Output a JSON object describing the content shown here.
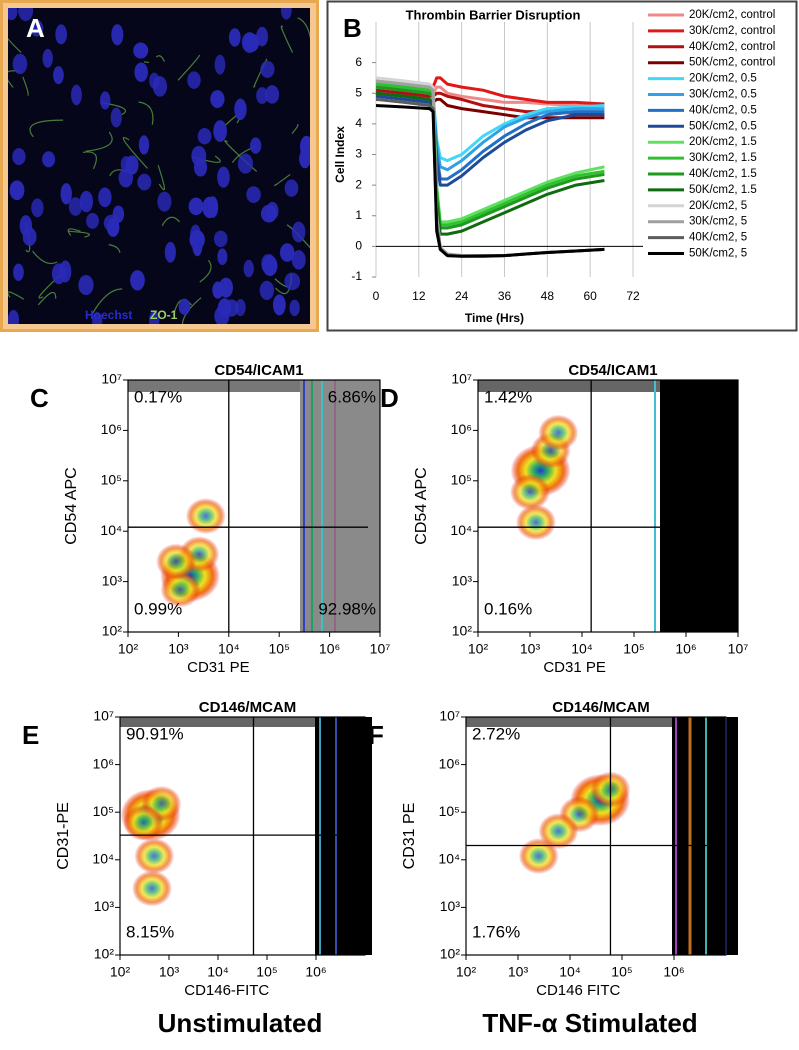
{
  "panel_a": {
    "panel": "A",
    "stains": [
      "Hoechst",
      "ZO-1"
    ],
    "stain_colors": [
      "#2a2ad0",
      "#9ad060"
    ]
  },
  "chart_data": [
    {
      "type": "line",
      "panel": "B",
      "title": "Thrombin Barrier Disruption",
      "x_label": "Time (Hrs)",
      "y_label": "Cell Index",
      "x": [
        0,
        8,
        15,
        16,
        17,
        18,
        20,
        24,
        30,
        36,
        42,
        48,
        56,
        64
      ],
      "xlim": [
        0,
        72
      ],
      "xticks": [
        0,
        12,
        24,
        36,
        48,
        60,
        72
      ],
      "ylim": [
        -1,
        7
      ],
      "yticks": [
        -1,
        0,
        1,
        2,
        3,
        4,
        5,
        6
      ],
      "grid": "x",
      "legend": "right",
      "series": [
        {
          "name": "20K/cm2, control",
          "color": "#f08888",
          "values": [
            5.2,
            5.1,
            5.0,
            5.0,
            5.2,
            5.2,
            5.0,
            4.9,
            4.8,
            4.7,
            4.7,
            4.65,
            4.6,
            4.6
          ]
        },
        {
          "name": "30K/cm2, control",
          "color": "#e01818",
          "values": [
            5.3,
            5.2,
            5.1,
            5.2,
            5.5,
            5.5,
            5.3,
            5.2,
            5.1,
            4.9,
            4.8,
            4.7,
            4.7,
            4.65
          ]
        },
        {
          "name": "40K/cm2, control",
          "color": "#b01010",
          "values": [
            5.1,
            5.0,
            4.9,
            4.9,
            5.0,
            5.0,
            4.9,
            4.8,
            4.6,
            4.5,
            4.4,
            4.4,
            4.35,
            4.3
          ]
        },
        {
          "name": "50K/cm2, control",
          "color": "#7a0000",
          "values": [
            5.0,
            4.9,
            4.8,
            4.7,
            4.8,
            4.8,
            4.6,
            4.5,
            4.4,
            4.3,
            4.2,
            4.2,
            4.2,
            4.2
          ]
        },
        {
          "name": "20K/cm2, 0.5",
          "color": "#40d8f8",
          "values": [
            5.3,
            5.2,
            5.1,
            5.0,
            3.5,
            2.9,
            2.8,
            3.0,
            3.6,
            4.0,
            4.3,
            4.5,
            4.55,
            4.6
          ]
        },
        {
          "name": "30K/cm2, 0.5",
          "color": "#30a0e8",
          "values": [
            5.2,
            5.1,
            5.0,
            4.9,
            3.3,
            2.6,
            2.5,
            2.8,
            3.4,
            3.9,
            4.2,
            4.4,
            4.5,
            4.5
          ]
        },
        {
          "name": "40K/cm2, 0.5",
          "color": "#2070c8",
          "values": [
            5.0,
            4.9,
            4.8,
            4.7,
            3.0,
            2.2,
            2.2,
            2.5,
            3.1,
            3.6,
            4.0,
            4.3,
            4.4,
            4.4
          ]
        },
        {
          "name": "50K/cm2, 0.5",
          "color": "#1f4a98",
          "values": [
            4.9,
            4.8,
            4.7,
            4.6,
            2.8,
            2.0,
            2.0,
            2.3,
            2.9,
            3.4,
            3.8,
            4.1,
            4.3,
            4.3
          ]
        },
        {
          "name": "20K/cm2, 1.5",
          "color": "#60e060",
          "values": [
            5.4,
            5.3,
            5.2,
            5.1,
            2.0,
            0.8,
            0.8,
            0.9,
            1.2,
            1.5,
            1.8,
            2.1,
            2.4,
            2.6
          ]
        },
        {
          "name": "30K/cm2, 1.5",
          "color": "#30c030",
          "values": [
            5.3,
            5.2,
            5.1,
            5.0,
            1.8,
            0.7,
            0.7,
            0.8,
            1.1,
            1.4,
            1.7,
            2.0,
            2.3,
            2.45
          ]
        },
        {
          "name": "40K/cm2, 1.5",
          "color": "#1e9a1e",
          "values": [
            5.2,
            5.1,
            5.0,
            4.9,
            1.6,
            0.6,
            0.6,
            0.7,
            1.0,
            1.3,
            1.6,
            1.9,
            2.2,
            2.35
          ]
        },
        {
          "name": "50K/cm2, 1.5",
          "color": "#106a10",
          "values": [
            5.0,
            4.9,
            4.8,
            4.7,
            1.4,
            0.4,
            0.4,
            0.5,
            0.8,
            1.1,
            1.4,
            1.7,
            2.0,
            2.15
          ]
        },
        {
          "name": "20K/cm2, 5",
          "color": "#d4d4d4",
          "values": [
            5.5,
            5.4,
            5.3,
            5.2,
            1.0,
            0.0,
            -0.25,
            -0.3,
            -0.3,
            -0.3,
            -0.25,
            -0.2,
            -0.15,
            -0.1
          ]
        },
        {
          "name": "30K/cm2, 5",
          "color": "#a0a0a0",
          "values": [
            5.4,
            5.3,
            5.2,
            5.1,
            0.9,
            -0.05,
            -0.25,
            -0.3,
            -0.3,
            -0.3,
            -0.25,
            -0.2,
            -0.15,
            -0.1
          ]
        },
        {
          "name": "40K/cm2, 5",
          "color": "#5c5c5c",
          "values": [
            4.8,
            4.7,
            4.6,
            4.5,
            0.7,
            -0.1,
            -0.3,
            -0.32,
            -0.3,
            -0.3,
            -0.25,
            -0.2,
            -0.15,
            -0.1
          ]
        },
        {
          "name": "50K/cm2, 5",
          "color": "#000000",
          "values": [
            4.6,
            4.55,
            4.5,
            4.4,
            0.5,
            -0.1,
            -0.3,
            -0.32,
            -0.32,
            -0.3,
            -0.25,
            -0.2,
            -0.15,
            -0.1
          ]
        }
      ]
    },
    {
      "type": "scatter",
      "panel": "C",
      "title": "CD54/ICAM1",
      "x_label": "CD31 PE",
      "y_label": "CD54 APC",
      "log": true,
      "xlim": [
        100,
        10000000
      ],
      "ylim": [
        100,
        10000000
      ],
      "xticks": [
        {
          "value": 100,
          "label": "10²"
        },
        {
          "value": 1000,
          "label": "10³"
        },
        {
          "value": 10000,
          "label": "10⁴"
        },
        {
          "value": 100000,
          "label": "10⁵"
        },
        {
          "value": 1000000,
          "label": "10⁶"
        },
        {
          "value": 10000000,
          "label": "10⁷"
        }
      ],
      "yticks": [
        {
          "value": 100,
          "label": "10²"
        },
        {
          "value": 1000,
          "label": "10³"
        },
        {
          "value": 10000,
          "label": "10⁴"
        },
        {
          "value": 100000,
          "label": "10⁵"
        },
        {
          "value": 1000000,
          "label": "10⁶"
        },
        {
          "value": 10000000,
          "label": "10⁷"
        }
      ],
      "gates": {
        "x": 10000,
        "y": 12000
      },
      "x": [
        1700,
        1100,
        2600,
        3500,
        900
      ],
      "values": [
        1300,
        700,
        3500,
        20000,
        2500
      ],
      "quadrants": {
        "corners": [
          "top-left",
          "top-right",
          "bottom-left",
          "bottom-right"
        ],
        "values": [
          0.17,
          6.86,
          0.99,
          92.98
        ],
        "value_labels": [
          "0.17%",
          "6.86%",
          "0.99%",
          "92.98%"
        ]
      }
    },
    {
      "type": "scatter",
      "panel": "D",
      "title": "CD54/ICAM1",
      "x_label": "CD31 PE",
      "y_label": "CD54 APC",
      "log": true,
      "xlim": [
        100,
        10000000
      ],
      "ylim": [
        100,
        10000000
      ],
      "xticks": [
        {
          "value": 100,
          "label": "10²"
        },
        {
          "value": 1000,
          "label": "10³"
        },
        {
          "value": 10000,
          "label": "10⁴"
        },
        {
          "value": 100000,
          "label": "10⁵"
        },
        {
          "value": 1000000,
          "label": "10⁶"
        },
        {
          "value": 10000000,
          "label": "10⁷"
        }
      ],
      "yticks": [
        {
          "value": 100,
          "label": "10²"
        },
        {
          "value": 1000,
          "label": "10³"
        },
        {
          "value": 10000,
          "label": "10⁴"
        },
        {
          "value": 100000,
          "label": "10⁵"
        },
        {
          "value": 1000000,
          "label": "10⁶"
        },
        {
          "value": 10000000,
          "label": "10⁷"
        }
      ],
      "gates": {
        "x": 15000,
        "y": 12000
      },
      "x": [
        1600,
        1000,
        2500,
        3500,
        1300
      ],
      "values": [
        160000,
        60000,
        400000,
        900000,
        15000
      ],
      "quadrants": {
        "corners": [
          "top-left",
          "bottom-left"
        ],
        "values": [
          1.42,
          0.16
        ],
        "value_labels": [
          "1.42%",
          "0.16%"
        ]
      }
    },
    {
      "type": "scatter",
      "panel": "E",
      "title": "CD146/MCAM",
      "x_label": "CD146-FITC",
      "y_label": "CD31-PE",
      "log": true,
      "xlim": [
        100,
        10000000
      ],
      "ylim": [
        100,
        10000000
      ],
      "xticks": [
        {
          "value": 100,
          "label": "10²"
        },
        {
          "value": 1000,
          "label": "10³"
        },
        {
          "value": 10000,
          "label": "10⁴"
        },
        {
          "value": 100000,
          "label": "10⁵"
        },
        {
          "value": 1000000,
          "label": "10⁶"
        }
      ],
      "yticks": [
        {
          "value": 100,
          "label": "10²"
        },
        {
          "value": 1000,
          "label": "10³"
        },
        {
          "value": 10000,
          "label": "10⁴"
        },
        {
          "value": 100000,
          "label": "10⁵"
        },
        {
          "value": 1000000,
          "label": "10⁶"
        },
        {
          "value": 10000000,
          "label": "10⁷"
        }
      ],
      "gates": {
        "x": 53000,
        "y": 33000
      },
      "x": [
        420,
        700,
        300,
        500,
        450
      ],
      "values": [
        87000,
        150000,
        60000,
        12000,
        2500
      ],
      "quadrants": {
        "corners": [
          "top-left",
          "bottom-left"
        ],
        "values": [
          90.91,
          8.15
        ],
        "value_labels": [
          "90.91%",
          "8.15%"
        ]
      }
    },
    {
      "type": "scatter",
      "panel": "F",
      "title": "CD146/MCAM",
      "x_label": "CD146 FITC",
      "y_label": "CD31 PE",
      "log": true,
      "xlim": [
        100,
        10000000
      ],
      "ylim": [
        100,
        10000000
      ],
      "xticks": [
        {
          "value": 100,
          "label": "10²"
        },
        {
          "value": 1000,
          "label": "10³"
        },
        {
          "value": 10000,
          "label": "10⁴"
        },
        {
          "value": 100000,
          "label": "10⁵"
        },
        {
          "value": 1000000,
          "label": "10⁶"
        }
      ],
      "yticks": [
        {
          "value": 100,
          "label": "10²"
        },
        {
          "value": 1000,
          "label": "10³"
        },
        {
          "value": 10000,
          "label": "10⁴"
        },
        {
          "value": 100000,
          "label": "10⁵"
        },
        {
          "value": 1000000,
          "label": "10⁶"
        },
        {
          "value": 10000000,
          "label": "10⁷"
        }
      ],
      "gates": {
        "x": 60000,
        "y": 20000
      },
      "x": [
        38000,
        15000,
        6000,
        2500,
        60000
      ],
      "values": [
        180000,
        90000,
        40000,
        12000,
        300000
      ],
      "quadrants": {
        "corners": [
          "top-left",
          "bottom-left"
        ],
        "values": [
          2.72,
          1.76
        ],
        "value_labels": [
          "2.72%",
          "1.76%"
        ]
      }
    }
  ],
  "captions": [
    "Unstimulated",
    "TNF-α Stimulated"
  ]
}
